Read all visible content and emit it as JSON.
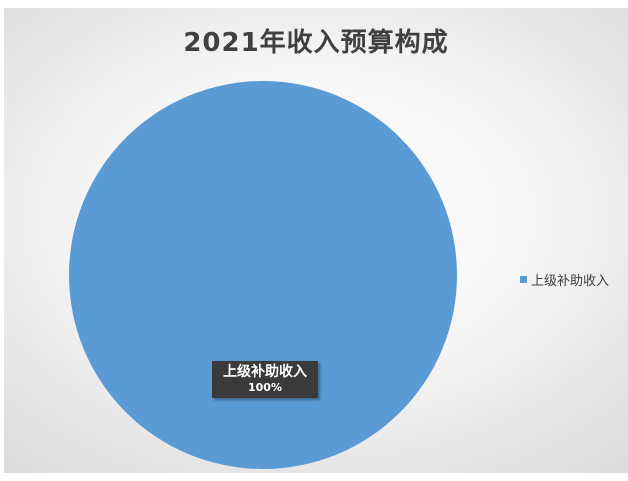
{
  "chart_data": {
    "type": "pie",
    "title": "2021年收入预算构成",
    "categories": [
      "上级补助收入"
    ],
    "values": [
      100
    ],
    "data_labels": [
      {
        "name": "上级补助收入",
        "value": "100%"
      }
    ],
    "legend": {
      "position": "right",
      "entries": [
        "上级补助收入"
      ]
    },
    "colors": {
      "上级补助收入": "#5b9bd5"
    }
  }
}
